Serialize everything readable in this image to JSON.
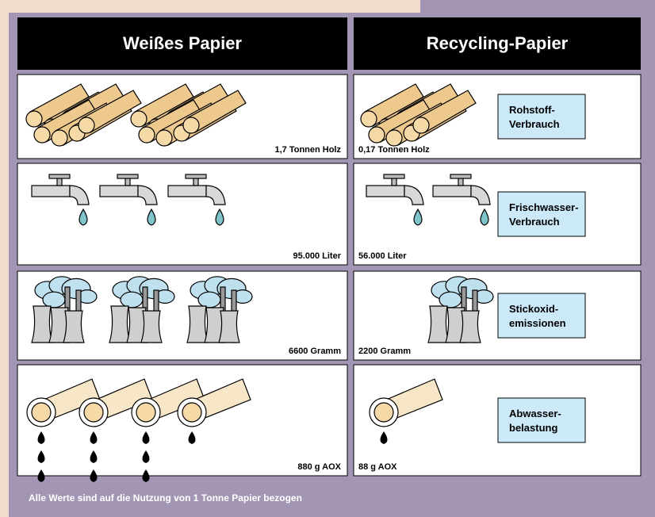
{
  "header": {
    "left": "Weißes Papier",
    "right": "Recycling-Papier"
  },
  "rows": [
    {
      "left": "1,7 Tonnen Holz",
      "right": "0,17 Tonnen Holz",
      "category": [
        "Rohstoff-",
        "Verbrauch"
      ]
    },
    {
      "left": "95.000 Liter",
      "right": "56.000 Liter",
      "category": [
        "Frischwasser-",
        "Verbrauch"
      ]
    },
    {
      "left": "6600 Gramm",
      "right": "2200 Gramm",
      "category": [
        "Stickoxid-",
        "emissionen"
      ]
    },
    {
      "left": "880 g AOX",
      "right": "88 g AOX",
      "category": [
        "Abwasser-",
        "belastung"
      ]
    }
  ],
  "footer": "Alle Werte sind auf die Nutzung von 1 Tonne Papier bezogen"
}
